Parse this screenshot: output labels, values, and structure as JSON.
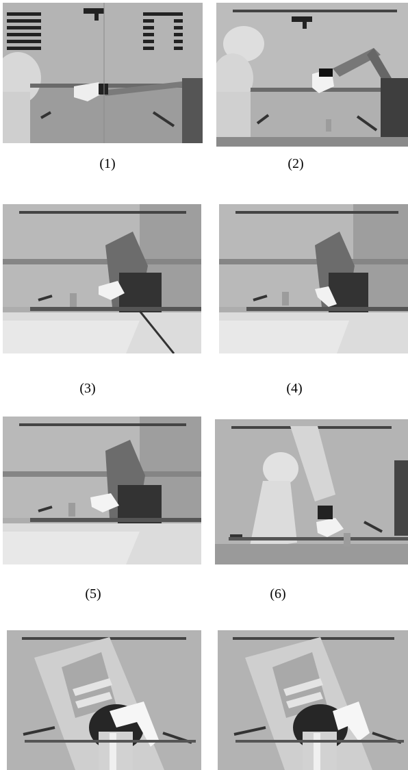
{
  "figure": {
    "captions": [
      "(1)",
      "(2)",
      "(3)",
      "(4)",
      "(5)",
      "(6)"
    ],
    "frames": [
      {
        "id": 1,
        "content": "robot-arm-reaching-with-virtual-hand-overlay"
      },
      {
        "id": 2,
        "content": "robot-arm-raised-with-virtual-hand-overlay"
      },
      {
        "id": 3,
        "content": "robot-arm-folded-near-table"
      },
      {
        "id": 4,
        "content": "robot-arm-folded-near-table"
      },
      {
        "id": 5,
        "content": "robot-arm-with-virtual-hand-near-table"
      },
      {
        "id": 6,
        "content": "robot-arm-extended-over-table"
      },
      {
        "id": 7,
        "content": "closeup-gripper-with-virtual-hand"
      },
      {
        "id": 8,
        "content": "closeup-gripper-with-virtual-hand"
      }
    ]
  }
}
